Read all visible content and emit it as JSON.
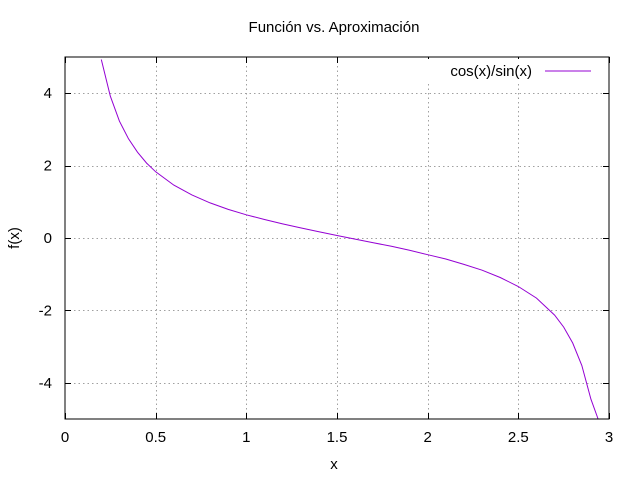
{
  "chart_data": {
    "type": "line",
    "title": "Función vs. Aproximación",
    "xlabel": "x",
    "ylabel": "f(x)",
    "xlim": [
      0,
      3
    ],
    "ylim": [
      -5,
      5
    ],
    "x_ticks": [
      0,
      0.5,
      1,
      1.5,
      2,
      2.5,
      3
    ],
    "x_tick_labels": [
      "0",
      "0.5",
      "1",
      "1.5",
      "2",
      "2.5",
      "3"
    ],
    "y_ticks": [
      -4,
      -2,
      0,
      2,
      4
    ],
    "y_tick_labels": [
      "-4",
      "-2",
      "0",
      "2",
      "4"
    ],
    "grid": true,
    "legend_position": "top-right",
    "series": [
      {
        "name": "cos(x)/sin(x)",
        "color": "#9400d3",
        "x": [
          0.2,
          0.25,
          0.3,
          0.35,
          0.4,
          0.45,
          0.5,
          0.6,
          0.7,
          0.8,
          0.9,
          1.0,
          1.1,
          1.2,
          1.3,
          1.4,
          1.5,
          1.6,
          1.7,
          1.8,
          1.9,
          2.0,
          2.1,
          2.2,
          2.3,
          2.4,
          2.5,
          2.6,
          2.7,
          2.75,
          2.8,
          2.85,
          2.9,
          2.94
        ],
        "y": [
          4.93,
          3.92,
          3.23,
          2.74,
          2.37,
          2.07,
          1.83,
          1.46,
          1.19,
          0.97,
          0.79,
          0.64,
          0.51,
          0.39,
          0.28,
          0.17,
          0.07,
          -0.03,
          -0.13,
          -0.23,
          -0.34,
          -0.46,
          -0.58,
          -0.73,
          -0.89,
          -1.09,
          -1.34,
          -1.66,
          -2.13,
          -2.46,
          -2.9,
          -3.52,
          -4.45,
          -5.0
        ]
      }
    ]
  }
}
